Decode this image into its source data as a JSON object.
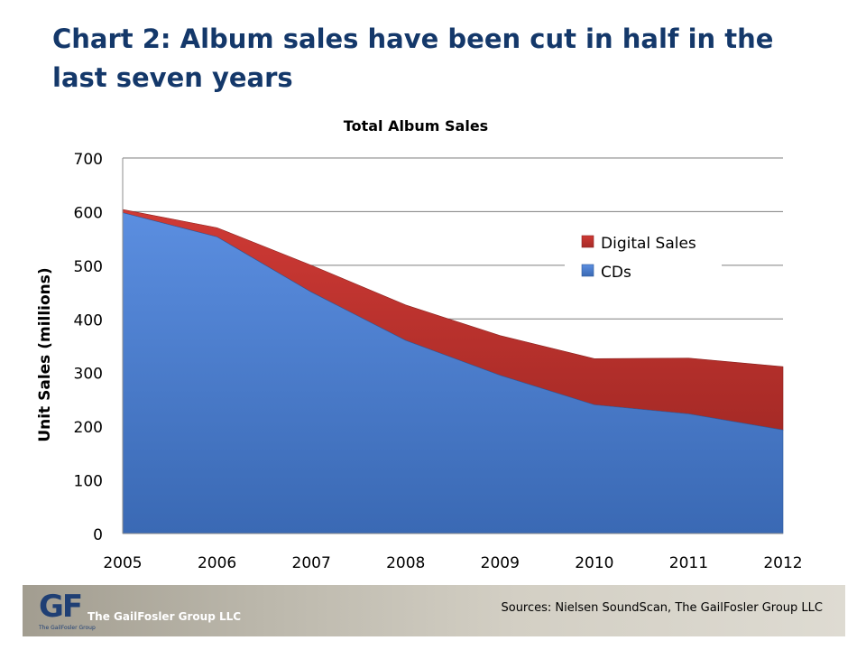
{
  "slide": {
    "title": "Chart 2: Album sales have been cut in half in the last seven years"
  },
  "chart_data": {
    "type": "area",
    "stacked": true,
    "title": "Total Album Sales",
    "xlabel": "",
    "ylabel": "Unit Sales (millions)",
    "x": [
      "2005",
      "2006",
      "2007",
      "2008",
      "2009",
      "2010",
      "2011",
      "2012"
    ],
    "ylim": [
      0,
      700
    ],
    "yticks": [
      0,
      100,
      200,
      300,
      400,
      500,
      600,
      700
    ],
    "grid": true,
    "legend_position": "right",
    "series": [
      {
        "name": "CDs",
        "values": [
          598,
          553,
          450,
          360,
          295,
          240,
          223,
          193
        ],
        "color": "#4a7fcf"
      },
      {
        "name": "Digital Sales",
        "values": [
          6,
          17,
          50,
          66,
          74,
          86,
          104,
          118
        ],
        "color": "#c0302c"
      }
    ]
  },
  "footer": {
    "logo_text": "GF",
    "logo_subtext": "The GailFosler Group",
    "company": "The GailFosler Group LLC",
    "sources": "Sources:  Nielsen SoundScan, The GailFosler Group LLC"
  }
}
